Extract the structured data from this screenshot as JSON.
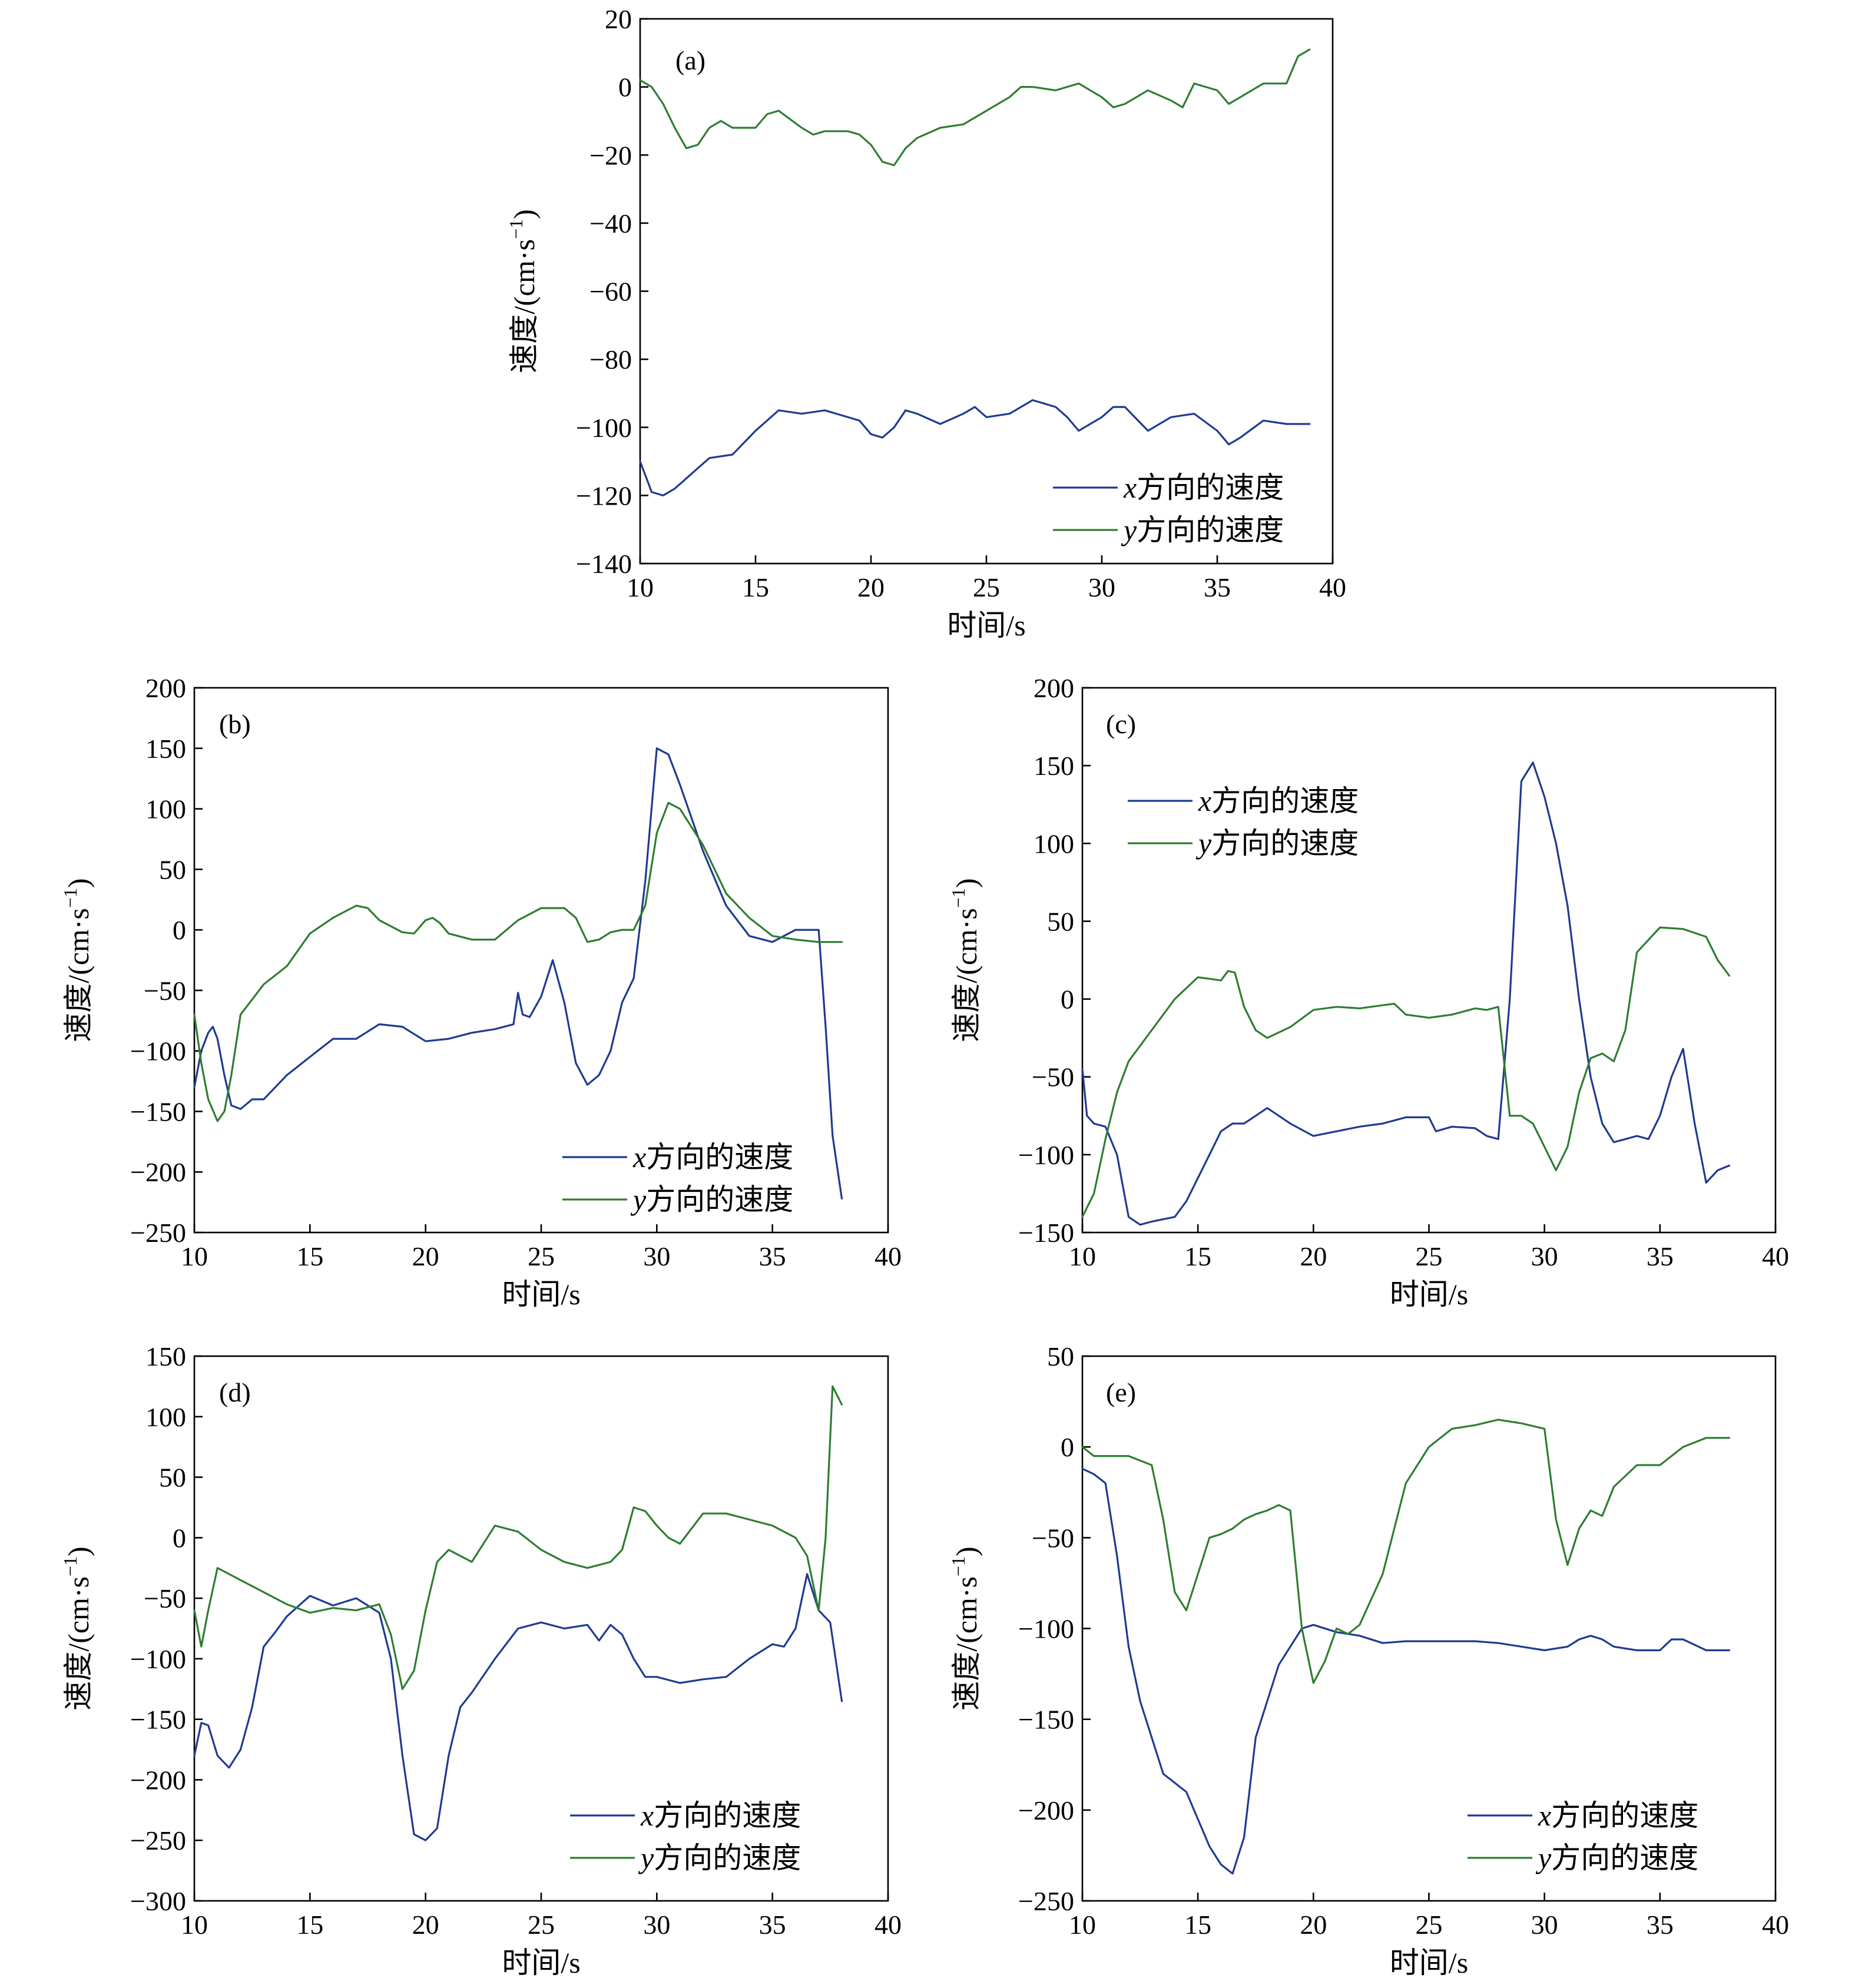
{
  "colors": {
    "x": "#1f3a93",
    "y": "#2e7d32"
  },
  "legend": {
    "x_label": "x方向的速度",
    "y_label": "y方向的速度"
  },
  "axis_titles": {
    "x": "时间/s",
    "y": "速度/(cm·s",
    "y_sup": "−1",
    "y_close": ")"
  },
  "chart_data": [
    {
      "panel": "(a)",
      "type": "line",
      "xlabel": "时间/s",
      "ylabel": "速度/(cm·s−1)",
      "xlim": [
        10,
        40
      ],
      "ylim": [
        -140,
        20
      ],
      "xticks": [
        10,
        15,
        20,
        25,
        30,
        35,
        40
      ],
      "yticks": [
        -140,
        -120,
        -100,
        -80,
        -60,
        -40,
        -20,
        0,
        20
      ],
      "legend_position": "bottom-right",
      "series": [
        {
          "name": "x方向的速度",
          "key": "x",
          "x": [
            10,
            10.5,
            11,
            11.5,
            12,
            12.5,
            13,
            14,
            15,
            15.5,
            16,
            17,
            18,
            19,
            19.5,
            20,
            20.5,
            21,
            21.5,
            22,
            23,
            24,
            24.5,
            25,
            26,
            26.5,
            27,
            28,
            28.5,
            29,
            30,
            30.5,
            31,
            32,
            33,
            34,
            35,
            35.5,
            36,
            37,
            38,
            39
          ],
          "y": [
            -110,
            -119,
            -120,
            -118,
            -115,
            -112,
            -109,
            -108,
            -101,
            -98,
            -95,
            -96,
            -95,
            -97,
            -98,
            -102,
            -103,
            -100,
            -95,
            -96,
            -99,
            -96,
            -94,
            -97,
            -96,
            -94,
            -92,
            -94,
            -97,
            -101,
            -97,
            -94,
            -94,
            -101,
            -97,
            -96,
            -101,
            -105,
            -103,
            -98,
            -99,
            -99
          ]
        },
        {
          "name": "y方向的速度",
          "key": "y",
          "x": [
            10,
            10.5,
            11,
            11.5,
            12,
            12.5,
            13,
            13.5,
            14,
            15,
            15.5,
            16,
            17,
            17.5,
            18,
            19,
            19.5,
            20,
            20.5,
            21,
            21.5,
            22,
            23,
            24,
            25,
            26,
            26.5,
            27,
            28,
            29,
            30,
            30.5,
            31,
            32,
            33,
            33.5,
            34,
            35,
            35.5,
            36,
            37,
            38,
            38.5,
            39
          ],
          "y": [
            2,
            0,
            -5,
            -12,
            -18,
            -17,
            -12,
            -10,
            -12,
            -12,
            -8,
            -7,
            -12,
            -14,
            -13,
            -13,
            -14,
            -17,
            -22,
            -23,
            -18,
            -15,
            -12,
            -11,
            -7,
            -3,
            0,
            0,
            -1,
            1,
            -3,
            -6,
            -5,
            -1,
            -4,
            -6,
            1,
            -1,
            -5,
            -3,
            1,
            1,
            9,
            11
          ]
        }
      ]
    },
    {
      "panel": "(b)",
      "type": "line",
      "xlabel": "时间/s",
      "ylabel": "速度/(cm·s−1)",
      "xlim": [
        10,
        40
      ],
      "ylim": [
        -250,
        200
      ],
      "xticks": [
        10,
        15,
        20,
        25,
        30,
        35,
        40
      ],
      "yticks": [
        -250,
        -200,
        -150,
        -100,
        -50,
        0,
        50,
        100,
        150,
        200
      ],
      "legend_position": "bottom-right",
      "series": [
        {
          "name": "x方向的速度",
          "key": "x",
          "x": [
            10,
            10.3,
            10.6,
            10.8,
            11,
            11.3,
            11.6,
            12,
            12.5,
            13,
            14,
            15,
            16,
            17,
            18,
            19,
            20,
            21,
            22,
            23,
            23.8,
            24,
            24.2,
            24.5,
            25,
            25.5,
            26,
            26.5,
            27,
            27.5,
            28,
            28.5,
            29,
            29.5,
            30,
            30.5,
            31,
            32,
            33,
            34,
            35,
            36,
            37,
            37.3,
            37.6,
            38
          ],
          "y": [
            -130,
            -100,
            -85,
            -80,
            -90,
            -120,
            -145,
            -148,
            -140,
            -140,
            -120,
            -105,
            -90,
            -90,
            -78,
            -80,
            -92,
            -90,
            -85,
            -82,
            -78,
            -52,
            -70,
            -72,
            -55,
            -25,
            -60,
            -110,
            -128,
            -120,
            -100,
            -60,
            -40,
            40,
            150,
            145,
            120,
            65,
            20,
            -5,
            -10,
            0,
            0,
            -80,
            -170,
            -222
          ]
        },
        {
          "name": "y方向的速度",
          "key": "y",
          "x": [
            10,
            10.3,
            10.6,
            11,
            11.3,
            11.6,
            12,
            13,
            14,
            15,
            16,
            17,
            17.5,
            18,
            19,
            19.5,
            20,
            20.3,
            20.6,
            21,
            22,
            23,
            24,
            25,
            26,
            26.5,
            27,
            27.5,
            28,
            28.5,
            29,
            29.5,
            30,
            30.5,
            31,
            32,
            33,
            34,
            35,
            36,
            37,
            38
          ],
          "y": [
            -70,
            -110,
            -140,
            -158,
            -150,
            -120,
            -70,
            -45,
            -30,
            -3,
            10,
            20,
            18,
            8,
            -2,
            -3,
            8,
            10,
            6,
            -3,
            -8,
            -8,
            8,
            18,
            18,
            10,
            -10,
            -8,
            -2,
            0,
            0,
            20,
            80,
            105,
            100,
            70,
            30,
            10,
            -5,
            -8,
            -10,
            -10
          ]
        }
      ]
    },
    {
      "panel": "(c)",
      "type": "line",
      "xlabel": "时间/s",
      "ylabel": "速度/(cm·s−1)",
      "xlim": [
        10,
        40
      ],
      "ylim": [
        -150,
        200
      ],
      "xticks": [
        10,
        15,
        20,
        25,
        30,
        35,
        40
      ],
      "yticks": [
        -150,
        -100,
        -50,
        0,
        50,
        100,
        150,
        200
      ],
      "legend_position": "top-left",
      "series": [
        {
          "name": "x方向的速度",
          "key": "x",
          "x": [
            10,
            10.2,
            10.5,
            11,
            11.5,
            12,
            12.5,
            13,
            14,
            14.5,
            15,
            15.5,
            16,
            16.5,
            17,
            17.5,
            18,
            19,
            20,
            21,
            22,
            23,
            24,
            25,
            25.3,
            26,
            27,
            27.5,
            28,
            28.5,
            29,
            29.5,
            30,
            30.5,
            31,
            31.5,
            32,
            32.5,
            33,
            33.5,
            34,
            34.5,
            35,
            35.5,
            36,
            36.5,
            37,
            37.5,
            38
          ],
          "y": [
            -45,
            -75,
            -80,
            -82,
            -100,
            -140,
            -145,
            -143,
            -140,
            -130,
            -115,
            -100,
            -85,
            -80,
            -80,
            -75,
            -70,
            -80,
            -88,
            -85,
            -82,
            -80,
            -76,
            -76,
            -85,
            -82,
            -83,
            -88,
            -90,
            0,
            140,
            152,
            130,
            100,
            60,
            0,
            -50,
            -80,
            -92,
            -90,
            -88,
            -90,
            -75,
            -50,
            -32,
            -80,
            -118,
            -110,
            -107
          ]
        },
        {
          "name": "y方向的速度",
          "key": "y",
          "x": [
            10,
            10.5,
            11,
            11.5,
            12,
            13,
            14,
            15,
            15.5,
            16,
            16.3,
            16.6,
            17,
            17.5,
            18,
            19,
            20,
            21,
            22,
            23,
            23.5,
            24,
            25,
            26,
            27,
            27.5,
            28,
            28.5,
            29,
            29.5,
            30,
            30.5,
            31,
            31.5,
            32,
            32.5,
            33,
            33.5,
            34,
            35,
            36,
            37,
            37.5,
            38
          ],
          "y": [
            -140,
            -125,
            -90,
            -60,
            -40,
            -20,
            0,
            14,
            13,
            12,
            18,
            17,
            -5,
            -20,
            -25,
            -18,
            -7,
            -5,
            -6,
            -4,
            -3,
            -10,
            -12,
            -10,
            -6,
            -7,
            -5,
            -75,
            -75,
            -80,
            -95,
            -110,
            -95,
            -60,
            -38,
            -35,
            -40,
            -20,
            30,
            46,
            45,
            40,
            25,
            15
          ]
        }
      ]
    },
    {
      "panel": "(d)",
      "type": "line",
      "xlabel": "时间/s",
      "ylabel": "速度/(cm·s−1)",
      "xlim": [
        10,
        40
      ],
      "ylim": [
        -300,
        150
      ],
      "xticks": [
        10,
        15,
        20,
        25,
        30,
        35,
        40
      ],
      "yticks": [
        -300,
        -250,
        -200,
        -150,
        -100,
        -50,
        0,
        50,
        100,
        150
      ],
      "legend_position": "bottom-right",
      "series": [
        {
          "name": "x方向的速度",
          "key": "x",
          "x": [
            10,
            10.3,
            10.6,
            11,
            11.5,
            12,
            12.5,
            13,
            13.5,
            14,
            15,
            16,
            17,
            18,
            18.5,
            19,
            19.5,
            20,
            20.5,
            21,
            21.5,
            22,
            23,
            24,
            25,
            26,
            27,
            27.5,
            28,
            28.5,
            29,
            29.5,
            30,
            31,
            32,
            33,
            34,
            35,
            35.5,
            36,
            36.5,
            37,
            37.5,
            38
          ],
          "y": [
            -180,
            -153,
            -155,
            -180,
            -190,
            -175,
            -140,
            -90,
            -78,
            -65,
            -48,
            -56,
            -50,
            -62,
            -100,
            -180,
            -245,
            -250,
            -240,
            -180,
            -140,
            -128,
            -100,
            -75,
            -70,
            -75,
            -72,
            -85,
            -72,
            -80,
            -100,
            -115,
            -115,
            -120,
            -117,
            -115,
            -100,
            -88,
            -90,
            -75,
            -30,
            -60,
            -70,
            -135
          ]
        },
        {
          "name": "y方向的速度",
          "key": "y",
          "x": [
            10,
            10.3,
            10.6,
            11,
            11.5,
            12,
            13,
            14,
            15,
            16,
            17,
            18,
            18.5,
            19,
            19.5,
            20,
            20.5,
            21,
            21.5,
            22,
            23,
            24,
            25,
            26,
            27,
            28,
            28.5,
            29,
            29.5,
            30,
            30.5,
            31,
            32,
            33,
            34,
            35,
            36,
            36.5,
            37,
            37.3,
            37.6,
            38
          ],
          "y": [
            -60,
            -90,
            -60,
            -25,
            -30,
            -35,
            -45,
            -55,
            -62,
            -58,
            -60,
            -55,
            -80,
            -125,
            -110,
            -60,
            -20,
            -10,
            -15,
            -20,
            10,
            5,
            -10,
            -20,
            -25,
            -20,
            -10,
            25,
            22,
            10,
            0,
            -5,
            20,
            20,
            15,
            10,
            0,
            -15,
            -60,
            0,
            125,
            110
          ]
        }
      ]
    },
    {
      "panel": "(e)",
      "type": "line",
      "xlabel": "时间/s",
      "ylabel": "速度/(cm·s−1)",
      "xlim": [
        10,
        40
      ],
      "ylim": [
        -250,
        50
      ],
      "xticks": [
        10,
        15,
        20,
        25,
        30,
        35,
        40
      ],
      "yticks": [
        -250,
        -200,
        -150,
        -100,
        -50,
        0,
        50
      ],
      "legend_position": "bottom-right",
      "series": [
        {
          "name": "x方向的速度",
          "key": "x",
          "x": [
            10,
            10.5,
            11,
            11.5,
            12,
            12.5,
            13,
            13.5,
            14,
            14.5,
            15,
            15.5,
            16,
            16.5,
            17,
            17.5,
            18,
            18.5,
            19,
            19.5,
            20,
            21,
            22,
            23,
            24,
            25,
            26,
            27,
            28,
            29,
            30,
            31,
            31.5,
            32,
            32.5,
            33,
            34,
            35,
            35.5,
            36,
            37,
            38
          ],
          "y": [
            -12,
            -15,
            -20,
            -60,
            -110,
            -140,
            -160,
            -180,
            -185,
            -190,
            -205,
            -220,
            -230,
            -235,
            -215,
            -160,
            -140,
            -120,
            -110,
            -100,
            -98,
            -102,
            -104,
            -108,
            -107,
            -107,
            -107,
            -107,
            -108,
            -110,
            -112,
            -110,
            -106,
            -104,
            -106,
            -110,
            -112,
            -112,
            -106,
            -106,
            -112,
            -112
          ]
        },
        {
          "name": "y方向的速度",
          "key": "y",
          "x": [
            10,
            10.5,
            11,
            11.5,
            12,
            13,
            13.5,
            14,
            14.5,
            15,
            15.5,
            16,
            16.5,
            17,
            17.5,
            18,
            18.5,
            19,
            19.5,
            20,
            20.5,
            21,
            21.5,
            22,
            23,
            24,
            25,
            26,
            27,
            28,
            29,
            30,
            30.5,
            31,
            31.5,
            32,
            32.5,
            33,
            34,
            35,
            36,
            37,
            38
          ],
          "y": [
            0,
            -5,
            -5,
            -5,
            -5,
            -10,
            -40,
            -80,
            -90,
            -70,
            -50,
            -48,
            -45,
            -40,
            -37,
            -35,
            -32,
            -35,
            -100,
            -130,
            -118,
            -100,
            -103,
            -98,
            -70,
            -20,
            0,
            10,
            12,
            15,
            13,
            10,
            -40,
            -65,
            -45,
            -35,
            -38,
            -22,
            -10,
            -10,
            0,
            5,
            5
          ]
        }
      ]
    }
  ]
}
